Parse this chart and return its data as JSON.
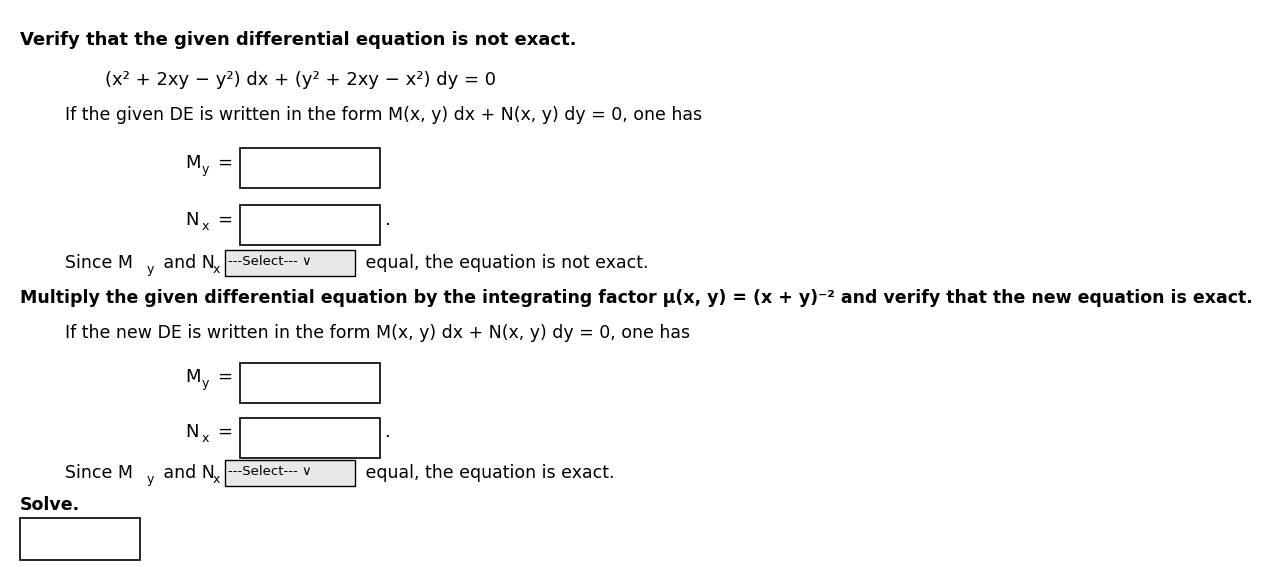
{
  "background_color": "#ffffff",
  "text_color": "#000000",
  "box_edge_color": "#000000",
  "box_color": "#ffffff",
  "title_line": "Verify that the given differential equation is not exact.",
  "equation_line": "(x² + 2xy − y²) dx + (y² + 2xy − x²) dy = 0",
  "form_line1": "If the given DE is written in the form M(x, y) dx + N(x, y) dy = 0, one has",
  "multiply_line": "Multiply the given differential equation by the integrating factor μ(x, y) = (x + y)⁻² and verify that the new equation is exact.",
  "form_line2": "If the new DE is written in the form M(x, y) dx + N(x, y) dy = 0, one has",
  "since_end1": " equal, the equation is not exact.",
  "since_end2": " equal, the equation is exact.",
  "solve_label": "Solve.",
  "dropdown_text": "---Select--- ∨"
}
